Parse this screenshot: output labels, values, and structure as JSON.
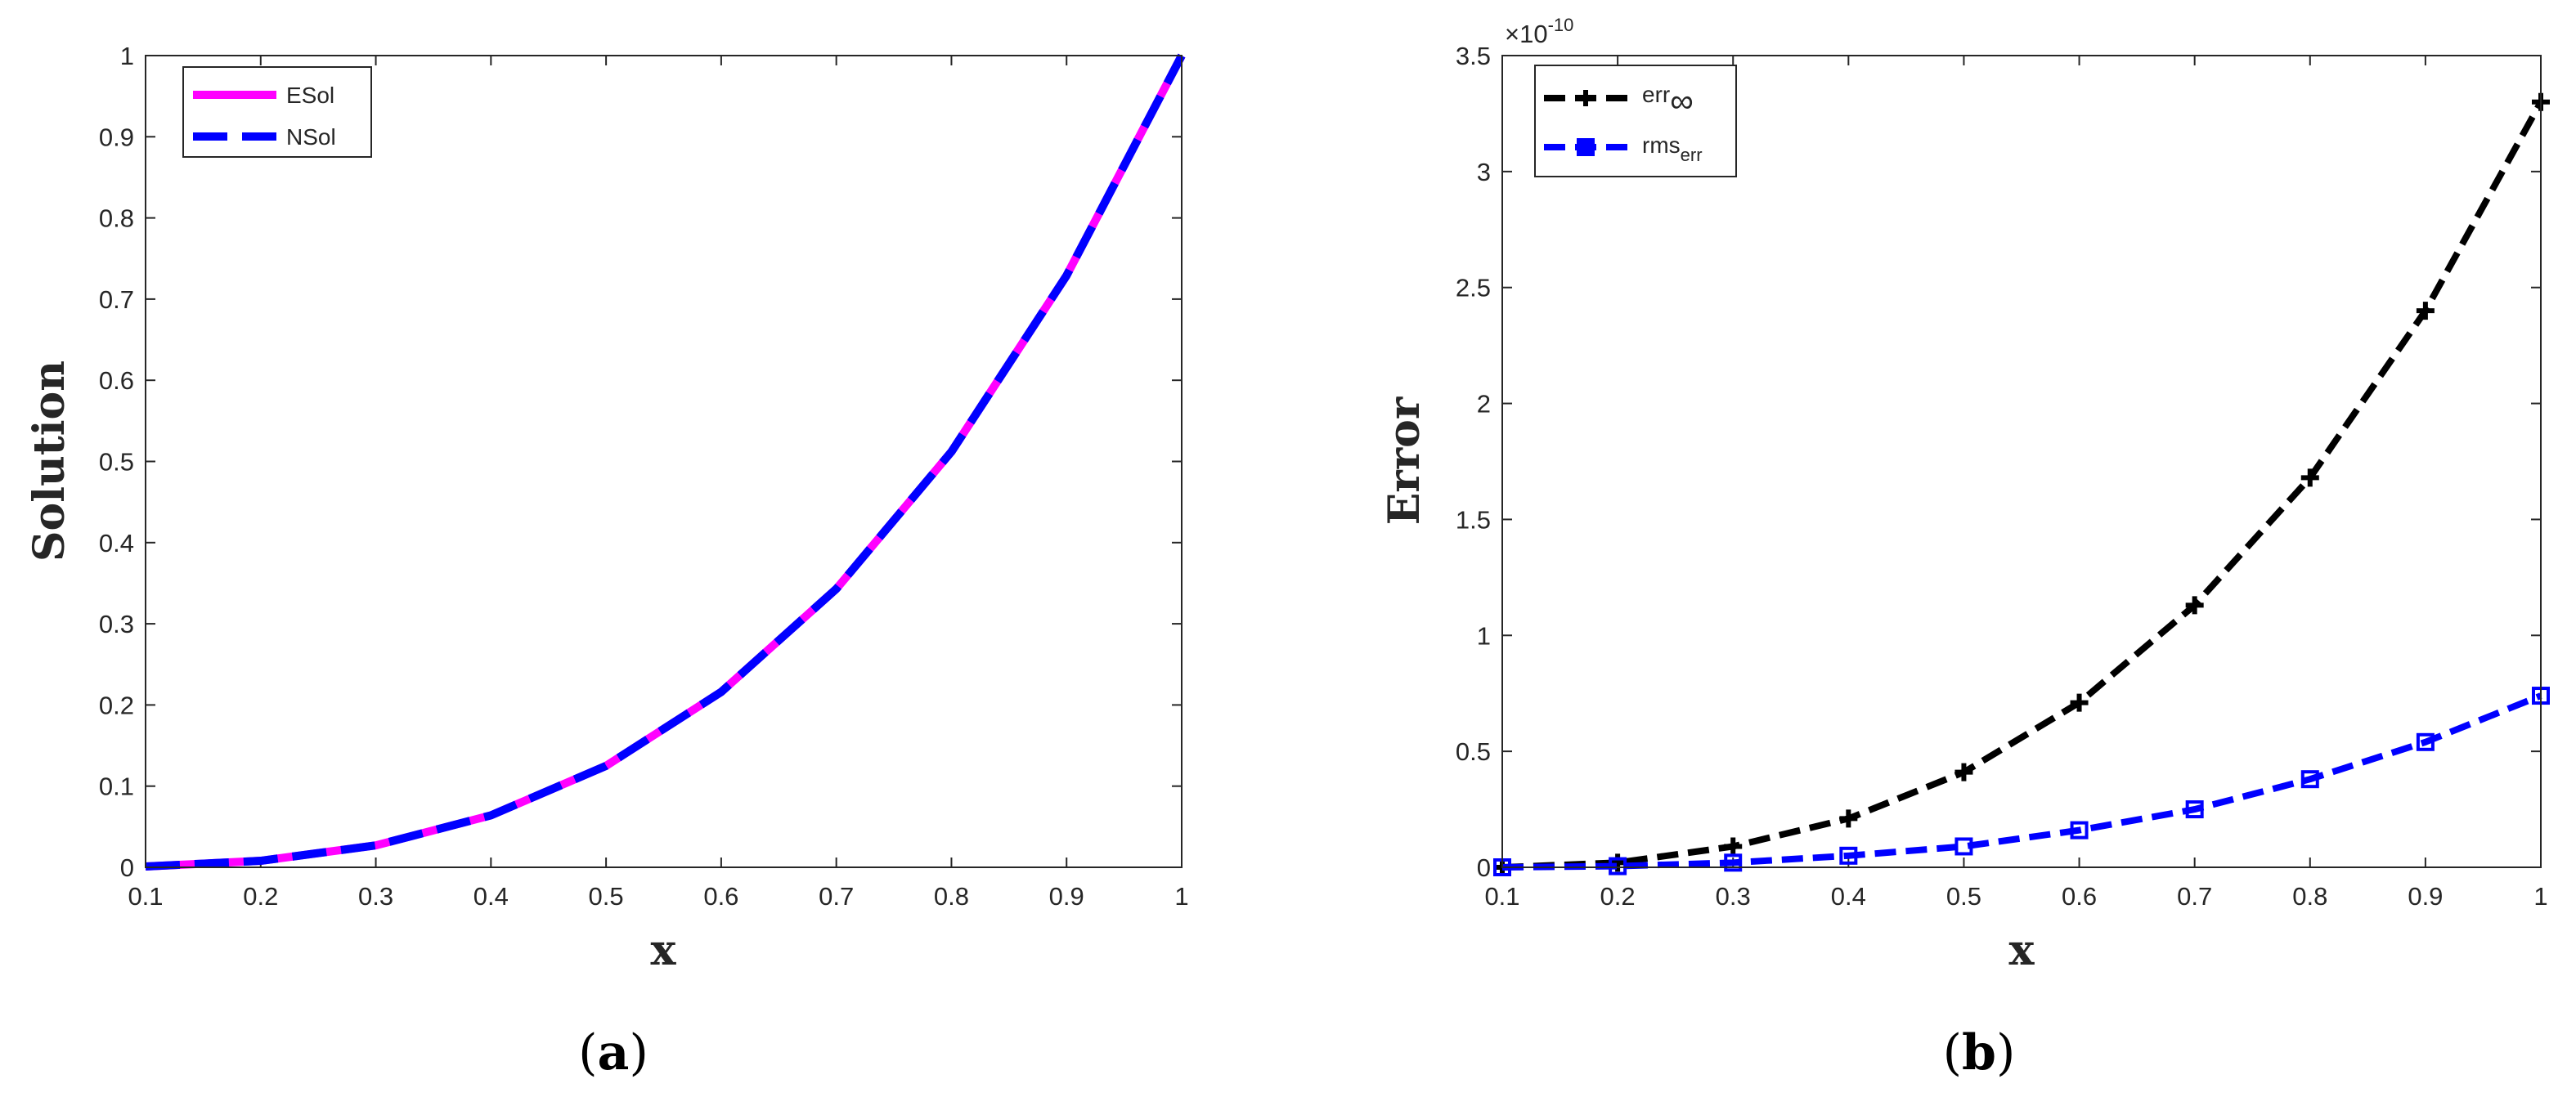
{
  "chart_data": [
    {
      "type": "line",
      "panel_caption": "a",
      "xlabel": "x",
      "ylabel": "Solution",
      "xlim": [
        0.1,
        1
      ],
      "ylim": [
        0,
        1
      ],
      "xticks": [
        "0.1",
        "0.2",
        "0.3",
        "0.4",
        "0.5",
        "0.6",
        "0.7",
        "0.8",
        "0.9",
        "1"
      ],
      "yticks": [
        "0",
        "0.1",
        "0.2",
        "0.3",
        "0.4",
        "0.5",
        "0.6",
        "0.7",
        "0.8",
        "0.9",
        "1"
      ],
      "grid": false,
      "legend_position": "top-left",
      "x": [
        0.1,
        0.2,
        0.3,
        0.4,
        0.5,
        0.6,
        0.7,
        0.8,
        0.9,
        1.0
      ],
      "series": [
        {
          "name": "ESol",
          "color": "#ff00ff",
          "style": "solid",
          "values": [
            0.001,
            0.008,
            0.027,
            0.064,
            0.125,
            0.216,
            0.343,
            0.512,
            0.729,
            1.0
          ]
        },
        {
          "name": "NSol",
          "color": "#0000ff",
          "style": "dashed",
          "values": [
            0.001,
            0.008,
            0.027,
            0.064,
            0.125,
            0.216,
            0.343,
            0.512,
            0.729,
            1.0
          ]
        }
      ]
    },
    {
      "type": "line",
      "panel_caption": "b",
      "xlabel": "x",
      "ylabel": "Error",
      "axis_multiplier": "×10",
      "axis_multiplier_exponent": "-10",
      "xlim": [
        0.1,
        1
      ],
      "ylim": [
        0,
        3.5
      ],
      "xticks": [
        "0.1",
        "0.2",
        "0.3",
        "0.4",
        "0.5",
        "0.6",
        "0.7",
        "0.8",
        "0.9",
        "1"
      ],
      "yticks": [
        "0",
        "0.5",
        "1",
        "1.5",
        "2",
        "2.5",
        "3",
        "3.5"
      ],
      "grid": false,
      "legend_position": "top-left",
      "x": [
        0.1,
        0.2,
        0.3,
        0.4,
        0.5,
        0.6,
        0.7,
        0.8,
        0.9,
        1.0
      ],
      "series": [
        {
          "name": "err",
          "name_subscript": "∞",
          "color": "#000000",
          "style": "dashed",
          "marker": "plus",
          "values": [
            0.0,
            0.02,
            0.09,
            0.21,
            0.41,
            0.71,
            1.13,
            1.68,
            2.4,
            3.3
          ]
        },
        {
          "name": "rms",
          "name_subscript": "err",
          "color": "#0000ff",
          "style": "dashed",
          "marker": "square",
          "values": [
            0.0,
            0.005,
            0.02,
            0.05,
            0.09,
            0.16,
            0.25,
            0.38,
            0.54,
            0.74
          ]
        }
      ]
    }
  ]
}
